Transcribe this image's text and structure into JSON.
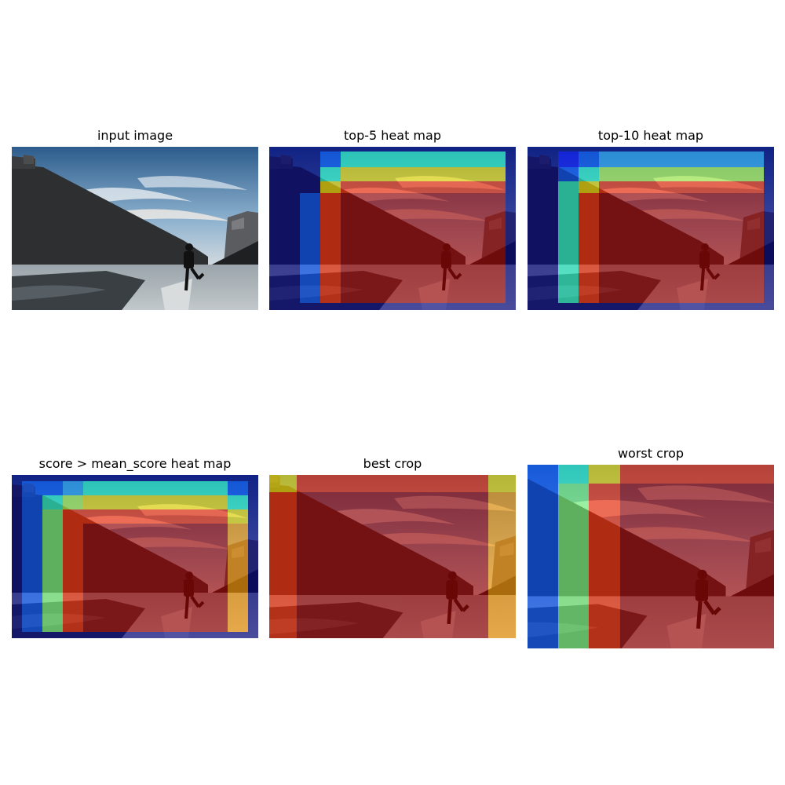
{
  "panels": [
    {
      "title": "input image"
    },
    {
      "title": "top-5 heat map"
    },
    {
      "title": "top-10 heat map"
    },
    {
      "title": "score > mean_score heat map"
    },
    {
      "title": "best crop"
    },
    {
      "title": "worst crop"
    }
  ],
  "colors": {
    "heat_dark_blue": "#00007f",
    "heat_blue": "#0050ff",
    "heat_cyan": "#29ffce",
    "heat_green": "#7dff7a",
    "heat_yellow": "#ffe600",
    "heat_orange": "#ff9a00",
    "heat_red": "#ff2a00",
    "heat_dark_red": "#a00000"
  }
}
